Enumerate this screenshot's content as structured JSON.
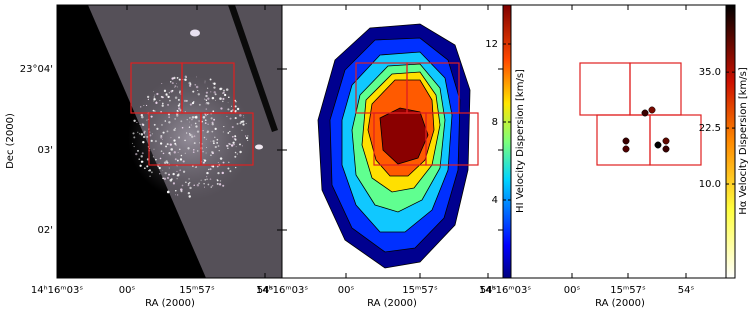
{
  "panels": [
    {
      "xticks": [
        "14ʰ16ᵐ03ˢ",
        "00ˢ",
        "15ᵐ57ˢ",
        "54ˢ"
      ],
      "yticks": [
        "23°04'",
        "03'",
        "02'"
      ],
      "xlabel": "RA (2000)",
      "ylabel": "Dec (2000)"
    },
    {
      "xticks": [
        "14ʰ16ᵐ03ˢ",
        "00ˢ",
        "15ᵐ57ˢ",
        "54ˢ"
      ],
      "xlabel": "RA (2000)"
    },
    {
      "xticks": [
        "14ʰ16ᵐ03ˢ",
        "00ˢ",
        "15ᵐ57ˢ",
        "54ˢ"
      ],
      "xlabel": "RA (2000)"
    }
  ],
  "colorbars": [
    {
      "label": "HI Velocity Dispersion [km/s]",
      "lim": [
        0,
        14
      ],
      "ticks": [
        4,
        8,
        12
      ]
    },
    {
      "label": "Hα Velocity Dispersion [km/s]",
      "lim": [
        -11,
        50
      ],
      "ticks": [
        {
          "value": 10,
          "label": "10.0"
        },
        {
          "value": 22.5,
          "label": "22.5"
        },
        {
          "value": 35,
          "label": "35.0"
        }
      ]
    }
  ]
}
